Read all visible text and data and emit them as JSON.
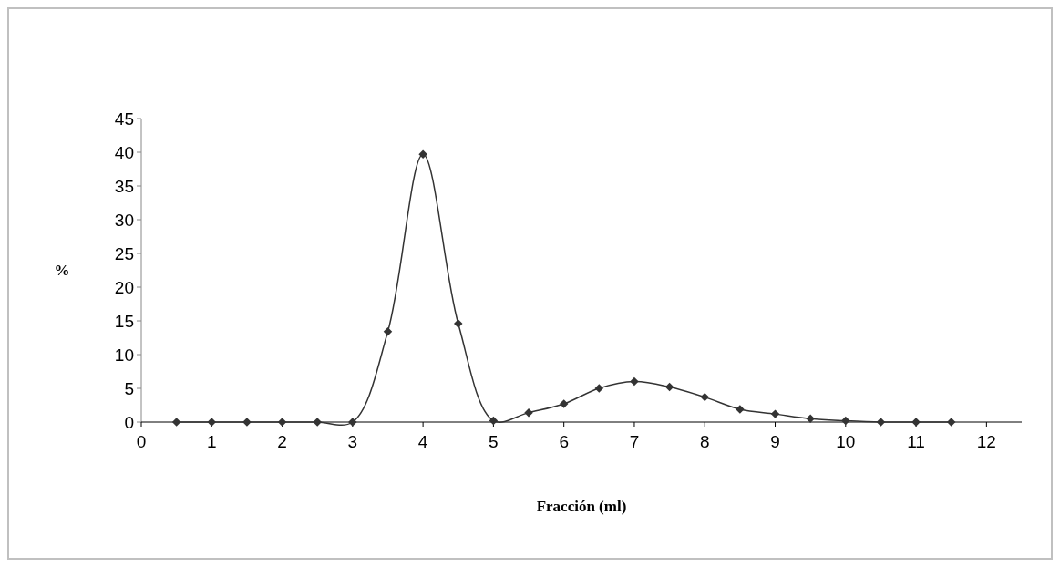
{
  "chart_data": {
    "type": "line",
    "xlabel": "Fracción (ml)",
    "ylabel": "%",
    "x": [
      0.5,
      1,
      1.5,
      2,
      2.5,
      3,
      3.5,
      4,
      4.5,
      5,
      5.5,
      6,
      6.5,
      7,
      7.5,
      8,
      8.5,
      9,
      9.5,
      10,
      10.5,
      11,
      11.5
    ],
    "series": [
      {
        "color": "#333333",
        "values": [
          0,
          0,
          0,
          0,
          0,
          0,
          13.4,
          39.7,
          14.6,
          0.2,
          1.4,
          2.7,
          5.0,
          6.0,
          5.2,
          3.7,
          1.9,
          1.2,
          0.5,
          0.2,
          0,
          0,
          0
        ]
      }
    ],
    "xlim": [
      0,
      12.5
    ],
    "xticks": [
      0,
      1,
      2,
      3,
      4,
      5,
      6,
      7,
      8,
      9,
      10,
      11,
      12
    ],
    "ylim": [
      0,
      45
    ],
    "yticks": [
      0,
      5,
      10,
      15,
      20,
      25,
      30,
      35,
      40,
      45
    ],
    "marker": "diamond",
    "line_style": "solid"
  }
}
